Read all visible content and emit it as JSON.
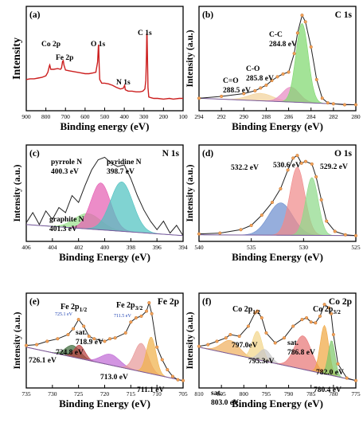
{
  "chart_data": [
    {
      "panel": "(a)",
      "type": "line",
      "title": "",
      "xlabel": "Binding energy (eV)",
      "ylabel": "Intensity",
      "xlim": [
        900,
        100
      ],
      "xticks": [
        900,
        800,
        700,
        600,
        500,
        400,
        300,
        200,
        100
      ],
      "x_reversed": true,
      "color": "#cc1f1f",
      "annotations": [
        {
          "text": "Co 2p",
          "x": 780
        },
        {
          "text": "Fe 2p",
          "x": 711
        },
        {
          "text": "O 1s",
          "x": 531
        },
        {
          "text": "N 1s",
          "x": 399
        },
        {
          "text": "C 1s",
          "x": 284.8
        }
      ],
      "series": [
        {
          "x": [
            900,
            880,
            860,
            840,
            820,
            800,
            790,
            782,
            780,
            775,
            760,
            740,
            725,
            720,
            715,
            711,
            708,
            700,
            680,
            660,
            640,
            620,
            600,
            580,
            560,
            545,
            536,
            532,
            531,
            528,
            525,
            515,
            500,
            480,
            460,
            440,
            420,
            405,
            400,
            398,
            395,
            380,
            360,
            340,
            320,
            305,
            295,
            290,
            287,
            285,
            284,
            282,
            279,
            275,
            265,
            250,
            230,
            200,
            170,
            150,
            120,
            100
          ],
          "y": [
            0.36,
            0.37,
            0.37,
            0.38,
            0.39,
            0.41,
            0.46,
            0.55,
            0.56,
            0.5,
            0.5,
            0.51,
            0.5,
            0.52,
            0.61,
            0.62,
            0.56,
            0.49,
            0.48,
            0.47,
            0.46,
            0.45,
            0.44,
            0.44,
            0.45,
            0.46,
            0.6,
            0.82,
            0.84,
            0.55,
            0.36,
            0.31,
            0.31,
            0.3,
            0.28,
            0.25,
            0.23,
            0.24,
            0.27,
            0.28,
            0.22,
            0.2,
            0.2,
            0.19,
            0.19,
            0.2,
            0.23,
            0.35,
            0.7,
            0.99,
            1.0,
            0.7,
            0.25,
            0.12,
            0.11,
            0.1,
            0.1,
            0.09,
            0.1,
            0.09,
            0.1,
            0.1
          ]
        }
      ]
    },
    {
      "panel": "(b)",
      "type": "line",
      "title": "C 1s",
      "xlabel": "Binding Energy (eV)",
      "ylabel": "Intensity (a.u.)",
      "xlim": [
        294,
        280
      ],
      "xticks": [
        294,
        292,
        290,
        288,
        286,
        284,
        282,
        280
      ],
      "x_reversed": true,
      "baseline": [
        0.1,
        0.03
      ],
      "raw": {
        "x": [
          294,
          292,
          290,
          289,
          288.5,
          288,
          287.5,
          287,
          286.5,
          286,
          285.5,
          285.2,
          284.8,
          284.5,
          284,
          283.5,
          283,
          282.5,
          282,
          281,
          280
        ],
        "y": [
          0.1,
          0.12,
          0.15,
          0.18,
          0.21,
          0.24,
          0.29,
          0.33,
          0.36,
          0.38,
          0.58,
          0.8,
          0.99,
          0.92,
          0.65,
          0.3,
          0.1,
          0.05,
          0.04,
          0.03,
          0.03
        ]
      },
      "components": [
        {
          "label": "C=O",
          "energy_label": "288.5 eV",
          "center": 288.5,
          "height": 0.08,
          "sigma": 1.1,
          "color": "#f2d39b"
        },
        {
          "label": "C-O",
          "energy_label": "285.8 eV",
          "center": 285.8,
          "height": 0.16,
          "sigma": 0.75,
          "color": "#e78bc4"
        },
        {
          "label": "C-C",
          "energy_label": "284.8 eV",
          "center": 284.8,
          "height": 0.85,
          "sigma": 0.55,
          "color": "#7fd86f"
        }
      ]
    },
    {
      "panel": "(c)",
      "type": "line",
      "title": "N 1s",
      "xlabel": "Binding Energy (eV)",
      "ylabel": "Intensity (a.u.)",
      "xlim": [
        406,
        394
      ],
      "xticks": [
        406,
        404,
        402,
        400,
        398,
        396,
        394
      ],
      "x_reversed": true,
      "baseline": [
        0.16,
        0.03
      ],
      "raw": {
        "x": [
          406,
          405.5,
          405,
          404.5,
          404,
          403.5,
          403,
          402.5,
          402,
          401.5,
          401,
          400.5,
          400,
          399.5,
          399,
          398.5,
          398,
          397.5,
          397,
          396.5,
          396,
          395.5,
          395,
          394.5,
          394
        ],
        "y": [
          0.18,
          0.3,
          0.16,
          0.32,
          0.22,
          0.36,
          0.3,
          0.5,
          0.42,
          0.62,
          0.8,
          0.92,
          0.95,
          0.88,
          0.84,
          0.86,
          0.7,
          0.5,
          0.33,
          0.2,
          0.1,
          0.2,
          0.06,
          0.15,
          0.03
        ]
      },
      "components": [
        {
          "label": "graphite N",
          "energy_label": "401.3 eV",
          "center": 401.3,
          "height": 0.18,
          "sigma": 1.0,
          "color": "#9be08d"
        },
        {
          "label": "pyrrole N",
          "energy_label": "400.3 eV",
          "center": 400.3,
          "height": 0.55,
          "sigma": 0.75,
          "color": "#e45fb3"
        },
        {
          "label": "pyridine N",
          "energy_label": "398.7 eV",
          "center": 398.7,
          "height": 0.58,
          "sigma": 0.85,
          "color": "#4fc2c0"
        }
      ]
    },
    {
      "panel": "(d)",
      "type": "line",
      "title": "O 1s",
      "xlabel": "Binding Energy (eV)",
      "ylabel": "Intensity (a.u.)",
      "xlim": [
        540,
        525
      ],
      "xticks": [
        540,
        535,
        530,
        525
      ],
      "x_reversed": true,
      "baseline": [
        0.04,
        0.03
      ],
      "raw": {
        "x": [
          540,
          538,
          536,
          535,
          534,
          533,
          532.2,
          531.5,
          531,
          530.6,
          530.2,
          529.8,
          529.2,
          528.8,
          528.3,
          527.8,
          527,
          526,
          525
        ],
        "y": [
          0.05,
          0.06,
          0.1,
          0.15,
          0.27,
          0.42,
          0.58,
          0.8,
          0.94,
          0.97,
          0.88,
          0.9,
          0.87,
          0.72,
          0.45,
          0.2,
          0.08,
          0.04,
          0.03
        ]
      },
      "components": [
        {
          "label": "",
          "energy_label": "532.2 eV",
          "center": 532.2,
          "height": 0.38,
          "sigma": 1.15,
          "color": "#6e8fcf"
        },
        {
          "label": "",
          "energy_label": "530.6 eV",
          "center": 530.6,
          "height": 0.8,
          "sigma": 0.72,
          "color": "#f08b8b"
        },
        {
          "label": "",
          "energy_label": "529.2 eV",
          "center": 529.2,
          "height": 0.68,
          "sigma": 0.6,
          "color": "#8fd98a"
        }
      ]
    },
    {
      "panel": "(e)",
      "type": "line",
      "title": "Fe 2p",
      "xlabel": "Binding Energy (eV)",
      "ylabel": "Intensity (a.u.)",
      "xlim": [
        735,
        705
      ],
      "xticks": [
        735,
        730,
        725,
        720,
        715,
        710,
        705
      ],
      "x_reversed": true,
      "baseline": [
        0.45,
        0.05
      ],
      "raw": {
        "x": [
          735,
          733,
          731,
          729,
          727,
          726,
          725,
          724,
          723,
          722,
          720,
          719,
          718,
          716,
          715,
          714,
          713,
          712,
          711.5,
          711,
          710,
          709,
          708,
          707,
          706,
          705
        ],
        "y": [
          0.47,
          0.48,
          0.52,
          0.55,
          0.6,
          0.67,
          0.78,
          0.7,
          0.58,
          0.55,
          0.52,
          0.55,
          0.56,
          0.62,
          0.75,
          0.8,
          0.82,
          0.88,
          0.98,
          0.85,
          0.45,
          0.3,
          0.18,
          0.1,
          0.06,
          0.05
        ]
      },
      "peak_labels": [
        {
          "text": "Fe 2p",
          "sub": "1/2",
          "x": 725
        },
        {
          "text": "Fe 2p",
          "sub": "3/2",
          "x": 711
        }
      ],
      "markers": [
        {
          "text": "725.1 eV",
          "x": 725.1
        },
        {
          "text": "711.5 eV",
          "x": 711.5
        }
      ],
      "components": [
        {
          "label": "",
          "energy_label": "726.1 eV",
          "center": 726.1,
          "height": 0.14,
          "sigma": 1.4,
          "color": "#3f6b3b"
        },
        {
          "label": "",
          "energy_label": "724.8 eV",
          "center": 724.8,
          "height": 0.16,
          "sigma": 1.0,
          "color": "#b84040"
        },
        {
          "label": "sat.",
          "energy_label": "718.9 eV",
          "center": 718.9,
          "height": 0.13,
          "sigma": 1.8,
          "color": "#c06bd6"
        },
        {
          "label": "",
          "energy_label": "713.0 eV",
          "center": 713.0,
          "height": 0.34,
          "sigma": 1.3,
          "color": "#e89a9a"
        },
        {
          "label": "",
          "energy_label": "711.1 eV",
          "center": 711.1,
          "height": 0.44,
          "sigma": 0.9,
          "color": "#f0b24b"
        }
      ]
    },
    {
      "panel": "(f)",
      "type": "line",
      "title": "Co 2p",
      "xlabel": "Binding Energy (eV)",
      "ylabel": "Intensity (a.u.)",
      "xlim": [
        810,
        775
      ],
      "xticks": [
        810,
        805,
        800,
        795,
        790,
        785,
        780,
        775
      ],
      "x_reversed": true,
      "baseline": [
        0.45,
        0.05
      ],
      "raw": {
        "x": [
          810,
          808,
          806,
          804,
          803,
          801,
          799,
          797.5,
          797,
          796,
          795,
          793,
          791,
          789,
          787,
          786,
          785,
          784,
          783,
          782,
          781,
          780.5,
          780,
          779,
          777,
          775
        ],
        "y": [
          0.46,
          0.48,
          0.52,
          0.56,
          0.6,
          0.58,
          0.7,
          0.86,
          0.88,
          0.8,
          0.62,
          0.5,
          0.56,
          0.7,
          0.78,
          0.8,
          0.75,
          0.74,
          0.82,
          0.96,
          0.92,
          0.85,
          0.6,
          0.25,
          0.08,
          0.05
        ]
      },
      "peak_labels": [
        {
          "text": "Co 2p",
          "sub": "1/2",
          "x": 797
        },
        {
          "text": "Co 2p",
          "sub": "3/2",
          "x": 782
        }
      ],
      "components": [
        {
          "label": "sat.",
          "energy_label": "803.0 eV",
          "center": 803.0,
          "height": 0.16,
          "sigma": 2.0,
          "color": "#f0b060"
        },
        {
          "label": "",
          "energy_label": "797.0eV",
          "center": 797.0,
          "height": 0.34,
          "sigma": 1.1,
          "color": "#f2d68a"
        },
        {
          "label": "",
          "energy_label": "795.3eV",
          "center": 795.3,
          "height": 0.14,
          "sigma": 1.3,
          "color": "#c8c8c8"
        },
        {
          "label": "sat.",
          "energy_label": "786.8 eV",
          "center": 786.8,
          "height": 0.4,
          "sigma": 1.9,
          "color": "#e87777"
        },
        {
          "label": "",
          "energy_label": "782.0 eV",
          "center": 782.0,
          "height": 0.58,
          "sigma": 0.95,
          "color": "#f0a742"
        },
        {
          "label": "",
          "energy_label": "780.4 eV",
          "center": 780.4,
          "height": 0.42,
          "sigma": 0.75,
          "color": "#7ec86b"
        }
      ]
    }
  ]
}
